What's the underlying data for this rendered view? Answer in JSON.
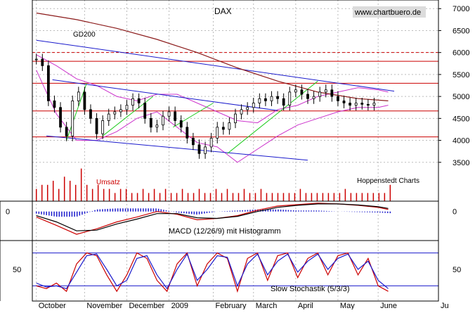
{
  "chart_data": {
    "type": "line",
    "title": "DAX",
    "watermark": "www.chartbuero.de",
    "source_label": "Hoppenstedt Charts",
    "price_panel": {
      "y_ticks": [
        3500,
        4000,
        4500,
        5000,
        5500,
        6000,
        6500,
        7000
      ],
      "ylim": [
        3000,
        7100
      ],
      "series": [
        {
          "name": "GD200",
          "color": "#8b1a1a",
          "x": [
            0,
            20,
            40,
            60,
            80,
            100,
            120,
            140,
            160,
            175
          ],
          "values": [
            6900,
            6750,
            6550,
            6300,
            6000,
            5650,
            5350,
            5100,
            4950,
            4900
          ]
        }
      ],
      "ohlc_approx_close": {
        "x": [
          0,
          3,
          6,
          9,
          12,
          15,
          18,
          21,
          24,
          27,
          30,
          33,
          36,
          39,
          42,
          45,
          48,
          51,
          54,
          57,
          60,
          63,
          66,
          69,
          72,
          75,
          78,
          81,
          84,
          87,
          90,
          93,
          96,
          99,
          102,
          105,
          108,
          111,
          114,
          117,
          120,
          123,
          126,
          129,
          132,
          135,
          138,
          141,
          144,
          147,
          150,
          153,
          156,
          159,
          162,
          165,
          168
        ],
        "values": [
          5850,
          5700,
          4900,
          4750,
          4300,
          4100,
          4900,
          5100,
          4700,
          4500,
          4150,
          4450,
          4600,
          4650,
          4700,
          4800,
          4950,
          4850,
          4500,
          4300,
          4350,
          4550,
          4650,
          4450,
          4300,
          4050,
          3900,
          3700,
          3850,
          4050,
          4300,
          4250,
          4400,
          4600,
          4700,
          4750,
          4850,
          4950,
          4900,
          5000,
          4950,
          4800,
          5100,
          5150,
          5050,
          4950,
          5000,
          5100,
          5150,
          5000,
          4900,
          4850,
          4800,
          4850,
          4820,
          4800,
          4850
        ]
      },
      "horizontal_levels": [
        {
          "value": 6000,
          "color": "#cc0000",
          "style": "dashed"
        },
        {
          "value": 5800,
          "color": "#cc0000",
          "style": "solid"
        },
        {
          "value": 5300,
          "color": "#cc0000",
          "style": "solid"
        },
        {
          "value": 4670,
          "color": "#cc0000",
          "style": "solid"
        },
        {
          "value": 4080,
          "color": "#cc0000",
          "style": "solid"
        }
      ],
      "trendlines": [
        {
          "color": "#1a1acc",
          "x": [
            0,
            178
          ],
          "values": [
            6280,
            5120
          ]
        },
        {
          "color": "#1a1acc",
          "x": [
            8,
            120
          ],
          "values": [
            5380,
            4680
          ]
        },
        {
          "color": "#1a1acc",
          "x": [
            5,
            135
          ],
          "values": [
            4100,
            3550
          ]
        },
        {
          "color": "#22cc22",
          "x": [
            15,
            25
          ],
          "values": [
            4000,
            5300
          ]
        },
        {
          "color": "#22cc22",
          "x": [
            33,
            58
          ],
          "values": [
            4100,
            5000
          ]
        },
        {
          "color": "#22cc22",
          "x": [
            68,
            88
          ],
          "values": [
            4300,
            4850
          ]
        },
        {
          "color": "#22cc22",
          "x": [
            95,
            140
          ],
          "values": [
            3700,
            5350
          ]
        }
      ],
      "bollinger_upper": {
        "x": [
          0,
          10,
          20,
          30,
          40,
          50,
          60,
          70,
          80,
          90,
          100,
          110,
          120,
          130,
          140,
          150,
          160,
          170,
          175
        ],
        "values": [
          5950,
          5700,
          5400,
          5250,
          5000,
          4900,
          5050,
          5050,
          4850,
          4650,
          4450,
          4400,
          4700,
          4800,
          5000,
          5100,
          5200,
          5150,
          5100
        ]
      },
      "bollinger_lower": {
        "x": [
          0,
          10,
          20,
          30,
          40,
          50,
          60,
          70,
          80,
          90,
          100,
          110,
          120,
          130,
          140,
          150,
          160,
          170,
          175
        ],
        "values": [
          5600,
          4600,
          4000,
          4000,
          4200,
          4500,
          4650,
          4300,
          3950,
          3850,
          3500,
          3800,
          4100,
          4350,
          4500,
          4650,
          4750,
          4750,
          4800
        ]
      }
    },
    "volume_panel": {
      "label": "Umsatz",
      "values": [
        3,
        4,
        4,
        5,
        3,
        6,
        5,
        4,
        8,
        4,
        3,
        4,
        3,
        3,
        2,
        3,
        3,
        2,
        2,
        3,
        2,
        3,
        2,
        3,
        2,
        2,
        3,
        2,
        2,
        3,
        2,
        2,
        3,
        2,
        3,
        2,
        2,
        3,
        2,
        2,
        3,
        2,
        2,
        2,
        2,
        2,
        2,
        3,
        2,
        2,
        2,
        2,
        2,
        2,
        2,
        3,
        2,
        2,
        2,
        2,
        2,
        2,
        2,
        4
      ]
    },
    "macd_panel": {
      "label": "MACD (12/26/9) mit Histogramm",
      "y_ticks": [
        0
      ],
      "ylim": [
        -400,
        150
      ],
      "series": [
        {
          "name": "MACD",
          "color": "#cc0000",
          "x": [
            0,
            10,
            20,
            30,
            40,
            50,
            60,
            70,
            80,
            90,
            100,
            110,
            120,
            130,
            140,
            150,
            160,
            170,
            175
          ],
          "values": [
            -80,
            -200,
            -330,
            -250,
            -150,
            -80,
            0,
            -40,
            -120,
            -100,
            -60,
            20,
            80,
            100,
            120,
            110,
            90,
            60,
            30
          ]
        },
        {
          "name": "Signal",
          "color": "#000000",
          "x": [
            0,
            10,
            20,
            30,
            40,
            50,
            60,
            70,
            80,
            90,
            100,
            110,
            120,
            130,
            140,
            150,
            160,
            170,
            175
          ],
          "values": [
            -60,
            -150,
            -280,
            -270,
            -180,
            -110,
            -30,
            -30,
            -90,
            -100,
            -70,
            0,
            60,
            90,
            110,
            110,
            95,
            70,
            45
          ]
        }
      ]
    },
    "stoch_panel": {
      "label": "Slow Stochastik (5/3/3)",
      "y_ticks": [
        50
      ],
      "ylim": [
        0,
        100
      ],
      "reference_levels": [
        80,
        20
      ],
      "series": [
        {
          "name": "%K",
          "color": "#cc0000",
          "x": [
            0,
            5,
            10,
            15,
            20,
            25,
            30,
            35,
            40,
            45,
            50,
            55,
            60,
            65,
            70,
            75,
            80,
            85,
            90,
            95,
            100,
            105,
            110,
            115,
            120,
            125,
            130,
            135,
            140,
            145,
            150,
            155,
            160,
            165,
            170,
            175
          ],
          "values": [
            20,
            15,
            25,
            10,
            60,
            80,
            75,
            40,
            10,
            40,
            80,
            70,
            30,
            10,
            60,
            80,
            20,
            60,
            80,
            70,
            10,
            70,
            80,
            30,
            75,
            80,
            35,
            70,
            80,
            40,
            75,
            80,
            40,
            70,
            20,
            10
          ]
        },
        {
          "name": "%D",
          "color": "#1a1acc",
          "x": [
            0,
            5,
            10,
            15,
            20,
            25,
            30,
            35,
            40,
            45,
            50,
            55,
            60,
            65,
            70,
            75,
            80,
            85,
            90,
            95,
            100,
            105,
            110,
            115,
            120,
            125,
            130,
            135,
            140,
            145,
            150,
            155,
            160,
            165,
            170,
            175
          ],
          "values": [
            25,
            18,
            20,
            15,
            45,
            75,
            78,
            50,
            20,
            30,
            70,
            75,
            40,
            15,
            50,
            78,
            30,
            50,
            75,
            72,
            20,
            60,
            78,
            40,
            65,
            78,
            45,
            65,
            78,
            50,
            70,
            78,
            50,
            65,
            30,
            15
          ]
        }
      ]
    },
    "x_axis": {
      "labels": [
        "October",
        "November",
        "December",
        "2009",
        "February",
        "March",
        "April",
        "May",
        "June",
        "Ju"
      ],
      "positions": [
        0,
        24,
        45,
        66,
        88,
        108,
        129,
        150,
        170,
        200
      ],
      "xlim": [
        -2,
        200
      ]
    }
  }
}
